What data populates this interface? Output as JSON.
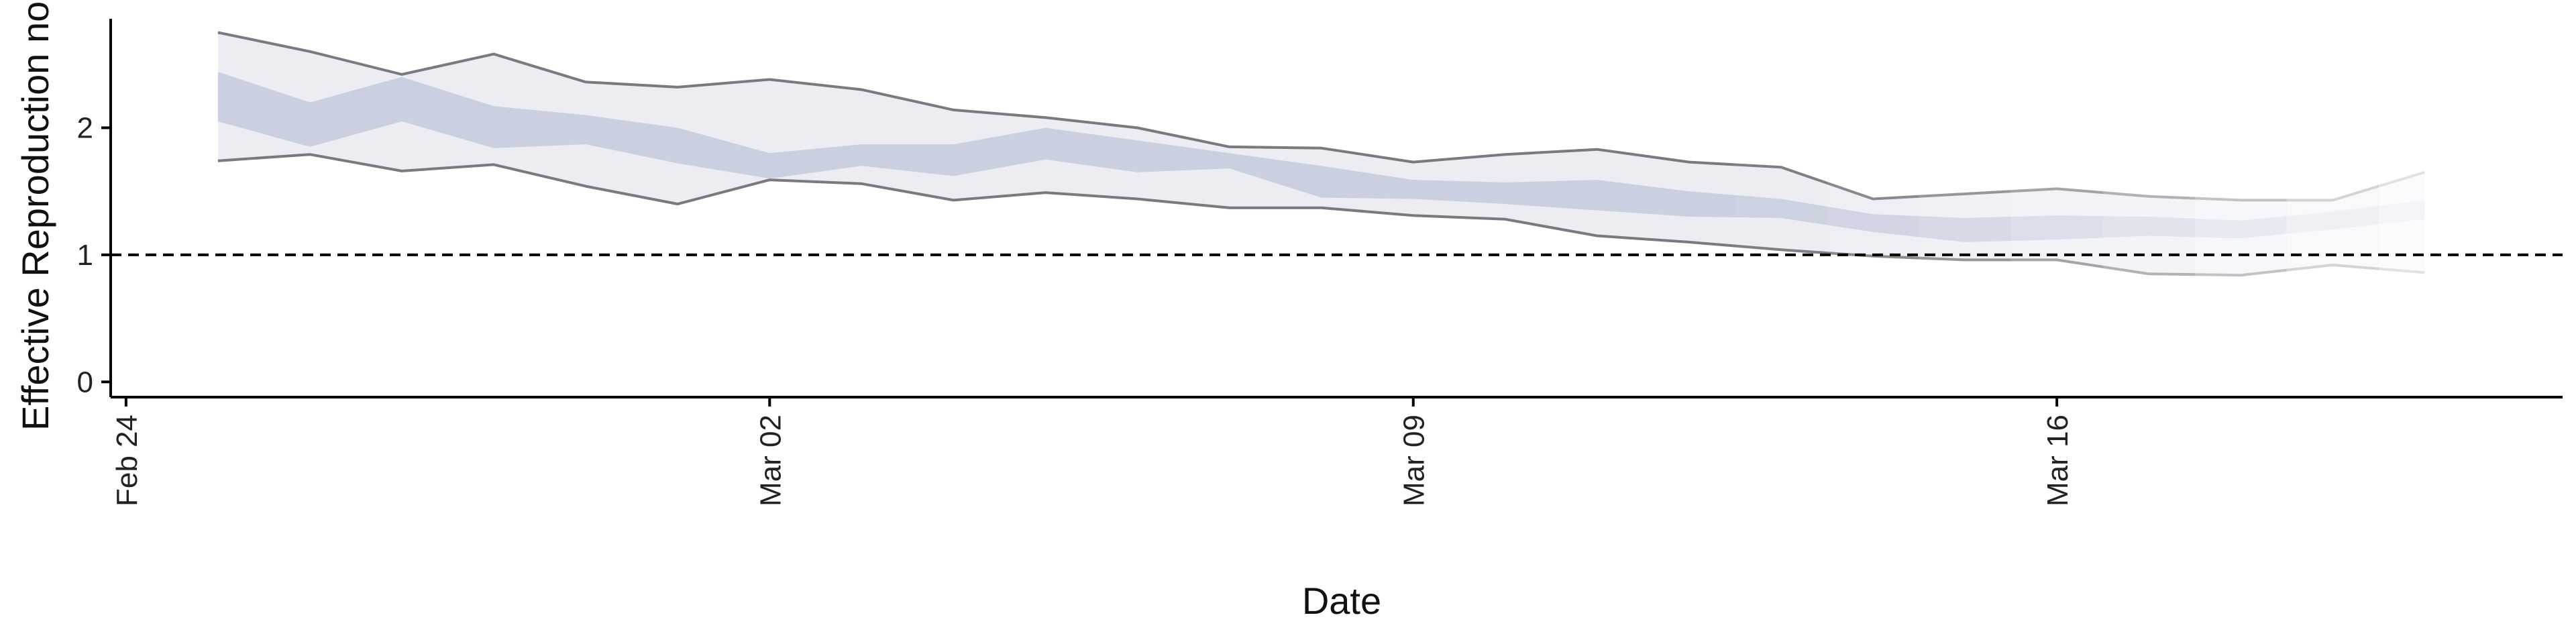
{
  "chart_data": {
    "type": "area",
    "title": "",
    "xlabel": "Date",
    "ylabel": "Effective Reproduction no.",
    "x_ticks": [
      "Feb 24",
      "Mar 02",
      "Mar 09",
      "Mar 16"
    ],
    "y_ticks": [
      "0",
      "1",
      "2"
    ],
    "ylim": [
      -0.12,
      2.9
    ],
    "xlim": [
      "2020-02-23T20:00",
      "2020-03-21T12:00"
    ],
    "reference_line": {
      "y": 1,
      "style": "dashed"
    },
    "grid": false,
    "legend": "none",
    "x": [
      "2020-02-25",
      "2020-02-26",
      "2020-02-27",
      "2020-02-28",
      "2020-02-29",
      "2020-03-01",
      "2020-03-02",
      "2020-03-03",
      "2020-03-04",
      "2020-03-05",
      "2020-03-06",
      "2020-03-07",
      "2020-03-08",
      "2020-03-09",
      "2020-03-10",
      "2020-03-11",
      "2020-03-12",
      "2020-03-13",
      "2020-03-14",
      "2020-03-15",
      "2020-03-16",
      "2020-03-17",
      "2020-03-18",
      "2020-03-19",
      "2020-03-20"
    ],
    "series": [
      {
        "role": "outer_upper",
        "values": [
          2.75,
          2.6,
          2.42,
          2.58,
          2.36,
          2.32,
          2.38,
          2.3,
          2.14,
          2.08,
          2.0,
          1.85,
          1.84,
          1.73,
          1.79,
          1.83,
          1.73,
          1.69,
          1.44,
          1.48,
          1.52,
          1.46,
          1.43,
          1.43,
          1.65
        ]
      },
      {
        "role": "inner_upper",
        "values": [
          2.44,
          2.2,
          2.4,
          2.17,
          2.1,
          2.0,
          1.8,
          1.87,
          1.87,
          2.0,
          1.9,
          1.8,
          1.7,
          1.59,
          1.57,
          1.59,
          1.5,
          1.44,
          1.32,
          1.29,
          1.31,
          1.3,
          1.27,
          1.34,
          1.43
        ]
      },
      {
        "role": "inner_lower",
        "values": [
          2.05,
          1.85,
          2.05,
          1.84,
          1.87,
          1.72,
          1.6,
          1.7,
          1.62,
          1.75,
          1.65,
          1.68,
          1.45,
          1.44,
          1.4,
          1.35,
          1.3,
          1.29,
          1.18,
          1.1,
          1.12,
          1.15,
          1.13,
          1.2,
          1.28
        ]
      },
      {
        "role": "outer_lower",
        "values": [
          1.74,
          1.79,
          1.66,
          1.71,
          1.54,
          1.4,
          1.59,
          1.56,
          1.43,
          1.49,
          1.44,
          1.37,
          1.37,
          1.31,
          1.28,
          1.15,
          1.1,
          1.04,
          0.99,
          0.96,
          0.96,
          0.85,
          0.84,
          0.92,
          0.86
        ]
      }
    ],
    "colors": {
      "outer_band": "#ebedf3",
      "inner_band": "#cbd0e0",
      "band_line": "#7a7a7e",
      "axis": "#000000",
      "reference_line": "#000000"
    }
  }
}
